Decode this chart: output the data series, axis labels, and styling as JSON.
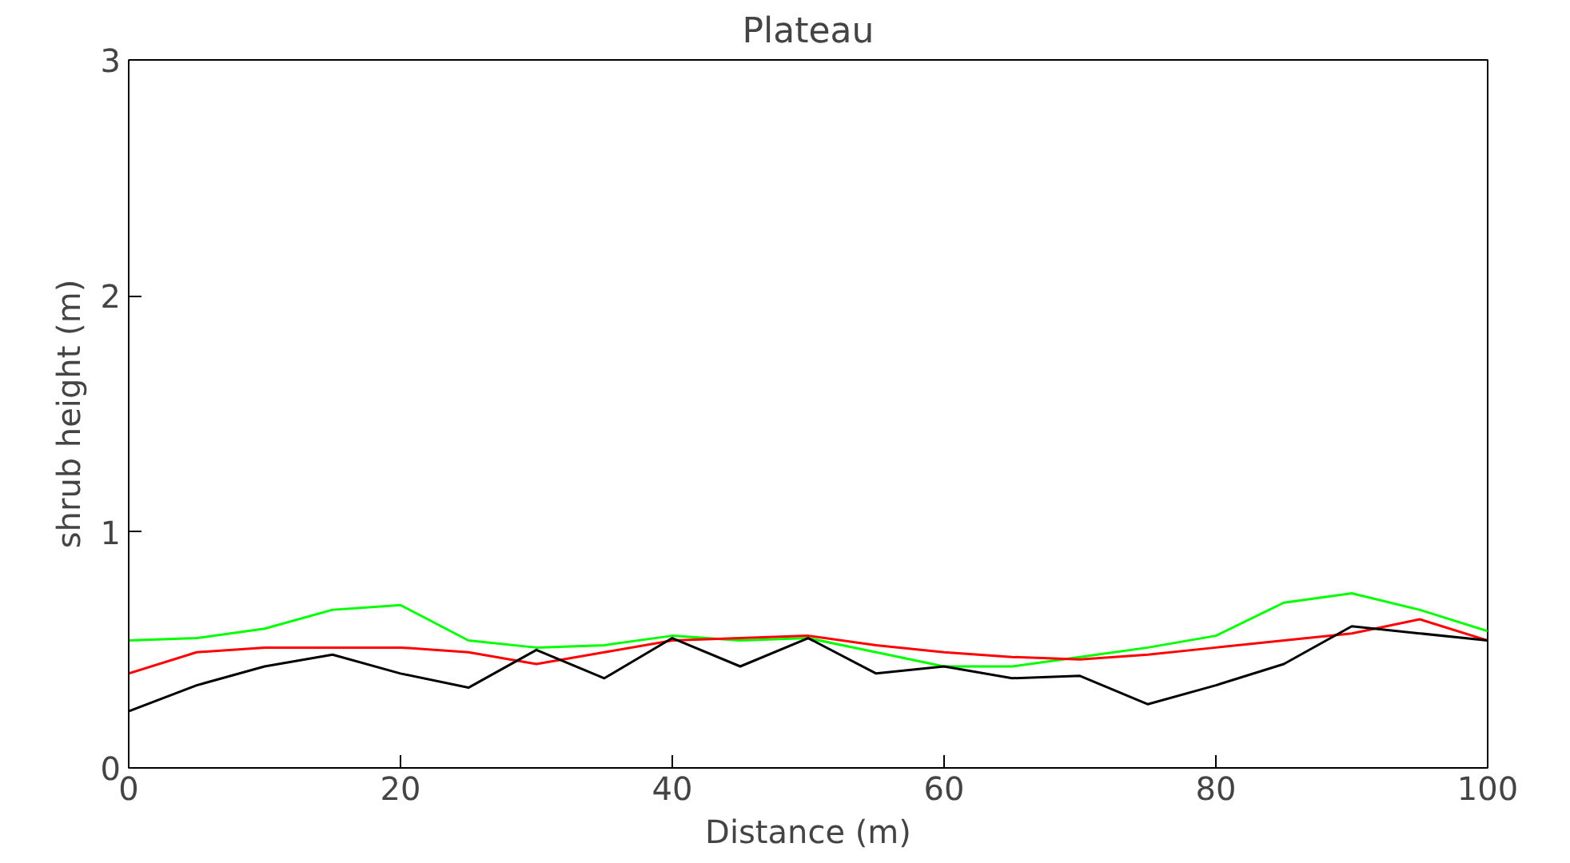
{
  "chart_data": {
    "type": "line",
    "title": "Plateau",
    "xlabel": "Distance (m)",
    "ylabel": "shrub height (m)",
    "x": [
      0,
      5,
      10,
      15,
      20,
      25,
      30,
      35,
      40,
      45,
      50,
      55,
      60,
      65,
      70,
      75,
      80,
      85,
      90,
      95,
      100
    ],
    "series": [
      {
        "color": "#00ff00",
        "values": [
          0.54,
          0.55,
          0.59,
          0.67,
          0.69,
          0.54,
          0.51,
          0.52,
          0.56,
          0.54,
          0.55,
          0.49,
          0.43,
          0.43,
          0.47,
          0.51,
          0.56,
          0.7,
          0.74,
          0.67,
          0.58
        ]
      },
      {
        "color": "#ff0000",
        "values": [
          0.4,
          0.49,
          0.51,
          0.51,
          0.51,
          0.49,
          0.44,
          0.49,
          0.54,
          0.55,
          0.56,
          0.52,
          0.49,
          0.47,
          0.46,
          0.48,
          0.51,
          0.54,
          0.57,
          0.63,
          0.54
        ]
      },
      {
        "color": "#000000",
        "values": [
          0.24,
          0.35,
          0.43,
          0.48,
          0.4,
          0.34,
          0.5,
          0.38,
          0.55,
          0.43,
          0.55,
          0.4,
          0.43,
          0.38,
          0.39,
          0.27,
          0.35,
          0.44,
          0.6,
          0.57,
          0.54
        ]
      }
    ],
    "xlim": [
      0,
      100
    ],
    "xticks": [
      0,
      20,
      40,
      60,
      80,
      100
    ],
    "ylim": [
      0,
      3
    ],
    "yticks": [
      0,
      1,
      2,
      3
    ],
    "grid": false,
    "marker": "none",
    "line_style": "solid"
  }
}
